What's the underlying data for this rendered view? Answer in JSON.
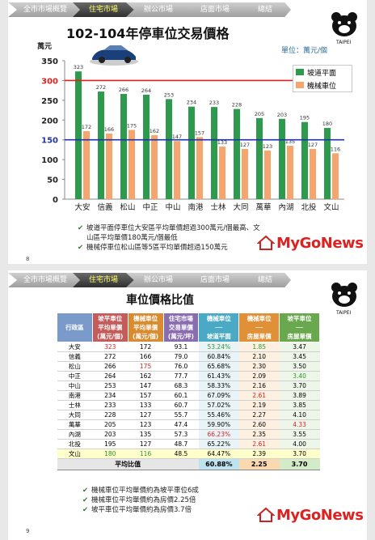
{
  "tabs": [
    "全市市場概覽",
    "住宅市場",
    "辦公市場",
    "店面市場",
    "總結"
  ],
  "active_tab": "住宅市場",
  "slide1": {
    "title": "102-104年停車位交易價格",
    "unit_label": "萬元",
    "unit_note": "單位：萬元/個",
    "slide_number": "8",
    "notes": [
      "坡道平面停車位大安區平均單價超過300萬元/個最高、文山區平均單價180萬元/個最低",
      "機械停車位松山區等5區平均單價超過150萬元"
    ]
  },
  "chart_data": {
    "type": "bar",
    "title": "102-104年停車位交易價格",
    "ylabel": "萬元",
    "ylim": [
      0,
      350
    ],
    "yticks": [
      0,
      50,
      100,
      150,
      200,
      250,
      300,
      350
    ],
    "categories": [
      "大安",
      "信義",
      "松山",
      "中正",
      "中山",
      "南港",
      "士林",
      "大同",
      "萬華",
      "內湖",
      "北投",
      "文山"
    ],
    "series": [
      {
        "name": "坡道平面",
        "color": "#2e9a4e",
        "values": [
          323,
          272,
          266,
          264,
          253,
          234,
          233,
          228,
          205,
          203,
          195,
          180
        ]
      },
      {
        "name": "機械車位",
        "color": "#f5a66f",
        "values": [
          172,
          166,
          175,
          162,
          147,
          157,
          133,
          127,
          123,
          135,
          127,
          116
        ]
      }
    ],
    "reference_lines": [
      {
        "value": 300,
        "color": "#e02020"
      },
      {
        "value": 150,
        "color": "#2233aa"
      }
    ],
    "legend_position": "top-right",
    "grid": false
  },
  "slide2": {
    "title": "車位價格比值",
    "slide_number": "9",
    "headers": {
      "district": "行政區",
      "ramp_price": "坡平車位\n平均單價\n(萬元/個)",
      "mech_price": "機械車位\n平均單價\n(萬元/個)",
      "house_price": "住宅市場\n交易單價\n(萬元/坪)",
      "mech_ratio": "機械車位\n──\n坡道平面",
      "mech_house": "機械車位\n──\n房屋單價",
      "ramp_house": "坡平車位\n──\n房屋單價"
    },
    "rows": [
      [
        "大安",
        "323",
        "172",
        "93.1",
        "53.24%",
        "1.85",
        "3.47"
      ],
      [
        "信義",
        "272",
        "166",
        "79.0",
        "60.84%",
        "2.10",
        "3.45"
      ],
      [
        "松山",
        "266",
        "175",
        "76.0",
        "65.68%",
        "2.30",
        "3.50"
      ],
      [
        "中正",
        "264",
        "162",
        "77.7",
        "61.43%",
        "2.09",
        "3.40"
      ],
      [
        "中山",
        "253",
        "147",
        "68.3",
        "58.33%",
        "2.16",
        "3.70"
      ],
      [
        "南港",
        "234",
        "157",
        "60.1",
        "67.09%",
        "2.61",
        "3.89"
      ],
      [
        "士林",
        "233",
        "133",
        "60.7",
        "57.02%",
        "2.19",
        "3.85"
      ],
      [
        "大同",
        "228",
        "127",
        "55.7",
        "55.46%",
        "2.27",
        "4.10"
      ],
      [
        "萬華",
        "205",
        "123",
        "47.4",
        "59.90%",
        "2.60",
        "4.33"
      ],
      [
        "內湖",
        "203",
        "135",
        "57.3",
        "66.23%",
        "2.35",
        "3.55"
      ],
      [
        "北投",
        "195",
        "127",
        "48.7",
        "65.22%",
        "2.61",
        "4.00"
      ],
      [
        "文山",
        "180",
        "116",
        "48.5",
        "64.47%",
        "2.39",
        "3.70"
      ]
    ],
    "average_label": "平均比值",
    "average": [
      "60.88%",
      "2.25",
      "3.70"
    ],
    "notes": [
      "機械車位平均單價約為坡平車位6成",
      "機械車位平均單價約為房價2.25倍",
      "坡平車位平均單價約為房價3.7倍"
    ]
  },
  "brand": {
    "name": "MyGoNews"
  }
}
